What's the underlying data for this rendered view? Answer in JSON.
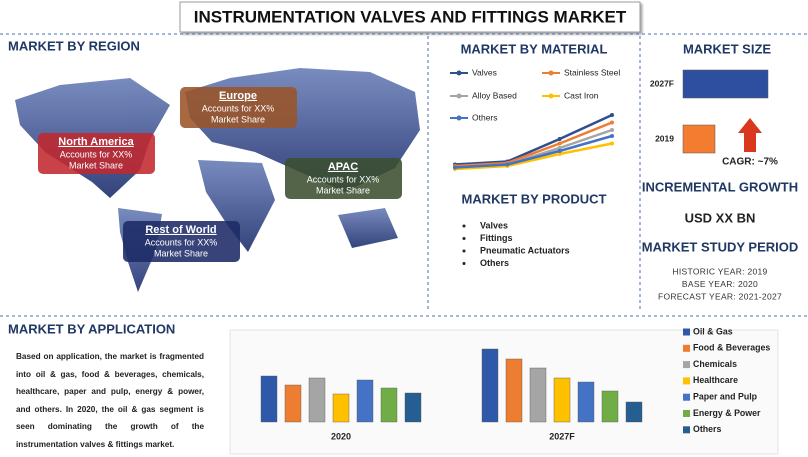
{
  "title": "INSTRUMENTATION VALVES AND FITTINGS MARKET",
  "region": {
    "title": "MARKET BY REGION",
    "boxes": [
      {
        "name": "North America",
        "line1": "Accounts for XX%",
        "line2": "Market Share",
        "color": "#c0282d"
      },
      {
        "name": "Europe",
        "line1": "Accounts for XX%",
        "line2": "Market Share",
        "color": "#9a5428"
      },
      {
        "name": "APAC",
        "line1": "Accounts for XX%",
        "line2": "Market Share",
        "color": "#3b4e30"
      },
      {
        "name": "Rest of World",
        "line1": "Accounts for XX%",
        "line2": "Market Share",
        "color": "#1c2a66"
      }
    ]
  },
  "product": {
    "title": "MARKET BY PRODUCT",
    "items": [
      "Valves",
      "Fittings",
      "Pneumatic Actuators",
      "Others"
    ]
  },
  "growth": {
    "title": "INCREMENTAL GROWTH",
    "value": "USD XX BN"
  },
  "period": {
    "title": "MARKET STUDY PERIOD",
    "lines": [
      "HISTORIC YEAR: 2019",
      "BASE YEAR: 2020",
      "FORECAST YEAR: 2021-2027"
    ]
  },
  "application_text": "Based on application, the market is fragmented into oil & gas, food & beverages, chemicals, healthcare, paper and pulp, energy & power, and others. In 2020, the oil & gas segment is seen dominating the growth of the instrumentation valves & fittings market.",
  "chart_data": [
    {
      "type": "line",
      "title": "MARKET BY MATERIAL",
      "categories": [
        null,
        null,
        null,
        null
      ],
      "ylim": [
        0,
        50
      ],
      "series": [
        {
          "name": "Valves",
          "color": "#2f4f8f",
          "values": [
            7,
            9,
            24,
            40
          ]
        },
        {
          "name": "Stainless Steel",
          "color": "#ed7d31",
          "values": [
            6,
            8,
            21,
            35
          ]
        },
        {
          "name": "Alloy Based",
          "color": "#a5a5a5",
          "values": [
            5,
            7,
            18,
            30
          ]
        },
        {
          "name": "Cast Iron",
          "color": "#ffc000",
          "values": [
            4,
            6,
            14,
            21
          ]
        },
        {
          "name": "Others",
          "color": "#4472c4",
          "values": [
            5,
            7,
            16,
            26
          ]
        }
      ]
    },
    {
      "type": "hbar",
      "title": "MARKET SIZE",
      "categories": [
        "2027F",
        "2019"
      ],
      "values": [
        85,
        32
      ],
      "colors": [
        "#2e4fa0",
        "#f47c30"
      ],
      "xlim": [
        0,
        100
      ],
      "annotation": "CAGR: ~7%"
    },
    {
      "type": "groupbar",
      "title": "MARKET BY APPLICATION",
      "categories": [
        "2020",
        "2027F"
      ],
      "ylim": [
        0,
        80
      ],
      "series": [
        {
          "name": "Oil & Gas",
          "color": "#2e59a8",
          "values": [
            46,
            73
          ]
        },
        {
          "name": "Food & Beverages",
          "color": "#ed7d31",
          "values": [
            37,
            63
          ]
        },
        {
          "name": "Chemicals",
          "color": "#a5a5a5",
          "values": [
            44,
            54
          ]
        },
        {
          "name": "Healthcare",
          "color": "#ffc000",
          "values": [
            28,
            44
          ]
        },
        {
          "name": "Paper and Pulp",
          "color": "#4472c4",
          "values": [
            42,
            40
          ]
        },
        {
          "name": "Energy & Power",
          "color": "#70ad47",
          "values": [
            34,
            31
          ]
        },
        {
          "name": "Others",
          "color": "#255e91",
          "values": [
            29,
            20
          ]
        }
      ]
    }
  ]
}
